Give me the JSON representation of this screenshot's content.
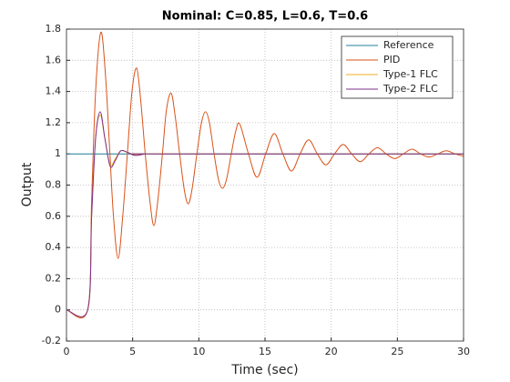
{
  "chart_data": {
    "type": "line",
    "title": "Nominal: C=0.85, L=0.6, T=0.6",
    "x_label": "Time (sec)",
    "y_label": "Output",
    "xlim": [
      0,
      30
    ],
    "xticks": [
      0,
      5,
      10,
      15,
      20,
      25,
      30
    ],
    "ylim": [
      -0.2,
      1.8
    ],
    "yticks": [
      -0.2,
      0,
      0.2,
      0.4,
      0.6,
      0.8,
      1,
      1.2,
      1.4,
      1.6,
      1.8
    ],
    "grid": true,
    "legend": "northeast",
    "series": [
      {
        "name": "Reference",
        "color": "#1f8096",
        "x": [
          0,
          30
        ],
        "values": [
          1,
          1
        ]
      },
      {
        "name": "PID",
        "color": "#d95319",
        "x": [
          0,
          1.6,
          1.9,
          2.2,
          2.6,
          2.95,
          3.25,
          3.55,
          3.9,
          4.25,
          4.6,
          4.95,
          5.3,
          5.6,
          5.95,
          6.3,
          6.6,
          6.9,
          7.25,
          7.55,
          7.9,
          8.2,
          8.55,
          8.9,
          9.2,
          9.5,
          9.85,
          10.2,
          10.5,
          10.8,
          11.15,
          11.5,
          11.8,
          12.1,
          12.45,
          12.8,
          13.1,
          13.75,
          14.4,
          15.05,
          15.7,
          16.35,
          17,
          17.65,
          18.3,
          18.95,
          19.6,
          20.25,
          20.9,
          21.55,
          22.2,
          22.85,
          23.5,
          24.15,
          24.8,
          25.45,
          26.1,
          26.75,
          27.4,
          28.05,
          28.7,
          29.35,
          30
        ],
        "values": [
          0,
          0,
          0.7,
          1.4,
          1.78,
          1.5,
          1.05,
          0.6,
          0.33,
          0.6,
          1.0,
          1.4,
          1.55,
          1.35,
          1.0,
          0.7,
          0.54,
          0.7,
          1.0,
          1.28,
          1.39,
          1.25,
          1.0,
          0.77,
          0.68,
          0.78,
          1.0,
          1.2,
          1.27,
          1.2,
          1.0,
          0.83,
          0.78,
          0.84,
          1.0,
          1.15,
          1.19,
          1.0,
          0.85,
          1.0,
          1.13,
          1.0,
          0.89,
          1.0,
          1.09,
          1.0,
          0.93,
          1.0,
          1.06,
          1.0,
          0.95,
          1.0,
          1.04,
          1.0,
          0.97,
          1.0,
          1.03,
          1.0,
          0.98,
          1.0,
          1.02,
          1.0,
          0.985
        ]
      },
      {
        "name": "Type-1 FLC",
        "color": "#edb120",
        "x": [
          0,
          1.6,
          1.9,
          2.2,
          2.55,
          2.9,
          3.3,
          3.7,
          4.1,
          4.6,
          5.2,
          6,
          7,
          30
        ],
        "values": [
          0,
          0,
          0.6,
          1.1,
          1.25,
          1.1,
          0.93,
          0.97,
          1.02,
          1.01,
          0.995,
          1.0,
          1.0,
          1.0
        ]
      },
      {
        "name": "Type-2 FLC",
        "color": "#7e2f8e",
        "x": [
          0,
          1.6,
          1.9,
          2.2,
          2.55,
          2.9,
          3.3,
          3.7,
          4.1,
          4.6,
          5.2,
          6,
          7,
          30
        ],
        "values": [
          0,
          0,
          0.6,
          1.1,
          1.27,
          1.1,
          0.92,
          0.96,
          1.02,
          1.01,
          0.99,
          1.0,
          1.0,
          1.0
        ]
      }
    ]
  }
}
